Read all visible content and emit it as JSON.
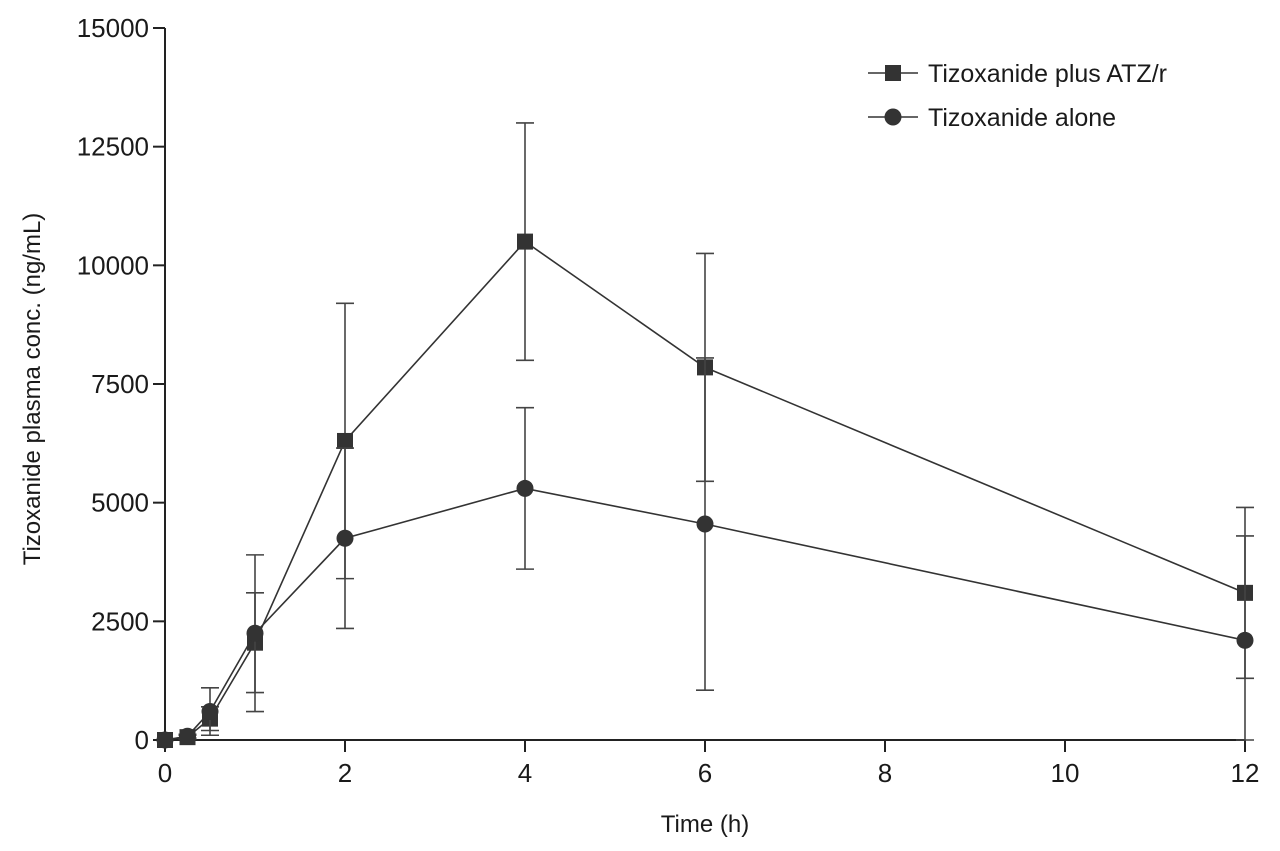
{
  "chart_data": {
    "type": "line",
    "title": "",
    "xlabel": "Time (h)",
    "ylabel": "Tizoxanide plasma conc. (ng/mL)",
    "xlim": [
      0,
      12
    ],
    "ylim": [
      0,
      15000
    ],
    "xticks": [
      0,
      2,
      4,
      6,
      8,
      10,
      12
    ],
    "yticks": [
      0,
      2500,
      5000,
      7500,
      10000,
      12500,
      15000
    ],
    "grid": false,
    "legend_position": "top-right",
    "colors": {
      "marker": "#333333",
      "line": "#333333",
      "axis": "#222222"
    },
    "series": [
      {
        "name": "Tizoxanide plus ATZ/r",
        "marker": "square",
        "x": [
          0,
          0.25,
          0.5,
          1,
          2,
          4,
          6,
          12
        ],
        "y": [
          0,
          60,
          450,
          2050,
          6300,
          10500,
          7850,
          3100
        ],
        "err": [
          0,
          40,
          250,
          1050,
          2900,
          2500,
          2400,
          1800
        ]
      },
      {
        "name": "Tizoxanide alone",
        "marker": "circle",
        "x": [
          0,
          0.25,
          0.5,
          1,
          2,
          4,
          6,
          12
        ],
        "y": [
          0,
          80,
          600,
          2250,
          4250,
          5300,
          4550,
          2100
        ],
        "err": [
          0,
          40,
          500,
          1650,
          1900,
          1700,
          3500,
          2200
        ]
      }
    ]
  }
}
